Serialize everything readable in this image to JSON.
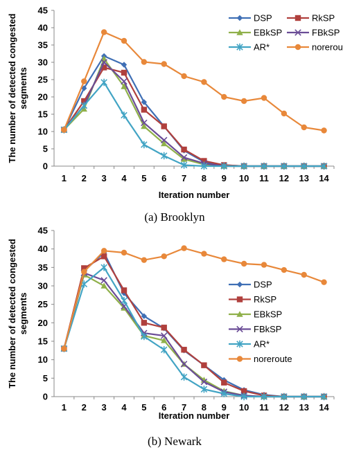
{
  "chart_data": [
    {
      "type": "line",
      "caption": "(a)  Brooklyn",
      "xlabel": "Iteration number",
      "ylabel": "The number of detected congested segments",
      "x": [
        1,
        2,
        3,
        4,
        5,
        6,
        7,
        8,
        9,
        10,
        11,
        12,
        13,
        14
      ],
      "ylim": [
        0,
        45
      ],
      "yticks": [
        0,
        5,
        10,
        15,
        20,
        25,
        30,
        35,
        40,
        45
      ],
      "legend": "top-right, 2 columns",
      "series": [
        {
          "name": "DSP",
          "color": "#3f6fb5",
          "marker": "diamond",
          "values": [
            10.5,
            22.5,
            31.8,
            29.3,
            18.5,
            11.5,
            4.5,
            1.2,
            0.3,
            0,
            0,
            0,
            0,
            0
          ]
        },
        {
          "name": "RkSP",
          "color": "#b0403d",
          "marker": "square",
          "values": [
            10.5,
            18.8,
            28.5,
            27.0,
            16.3,
            11.5,
            4.8,
            1.5,
            0.3,
            0,
            0,
            0,
            0,
            0
          ]
        },
        {
          "name": "EBkSP",
          "color": "#8fb04a",
          "marker": "triangle",
          "values": [
            10.5,
            16.5,
            31.0,
            23.0,
            11.5,
            6.5,
            2.0,
            0.5,
            0,
            0,
            0,
            0,
            0,
            0
          ]
        },
        {
          "name": "FBkSP",
          "color": "#6a4c96",
          "marker": "x",
          "values": [
            10.5,
            17.5,
            30.0,
            24.5,
            12.5,
            7.5,
            2.5,
            0.8,
            0,
            0,
            0,
            0,
            0,
            0
          ]
        },
        {
          "name": "AR*",
          "color": "#42a4c4",
          "marker": "star",
          "values": [
            10.5,
            17.5,
            24.2,
            14.7,
            6.2,
            3.0,
            0.3,
            0,
            0,
            0,
            0,
            0,
            0,
            0
          ]
        },
        {
          "name": "noreroute",
          "color": "#e8883a",
          "marker": "circle",
          "values": [
            10.5,
            24.5,
            38.7,
            36.2,
            30.1,
            29.5,
            26.0,
            24.3,
            20.0,
            18.8,
            19.7,
            15.2,
            11.2,
            10.3
          ]
        }
      ]
    },
    {
      "type": "line",
      "caption": "(b)  Newark",
      "xlabel": "Iteration number",
      "ylabel": "The number of detected congested segments",
      "x": [
        1,
        2,
        3,
        4,
        5,
        6,
        7,
        8,
        9,
        10,
        11,
        12,
        13,
        14
      ],
      "ylim": [
        0,
        45
      ],
      "yticks": [
        0,
        5,
        10,
        15,
        20,
        25,
        30,
        35,
        40,
        45
      ],
      "legend": "right, single column",
      "series": [
        {
          "name": "DSP",
          "color": "#3f6fb5",
          "marker": "diamond",
          "values": [
            13.0,
            34.0,
            39.0,
            28.0,
            21.8,
            18.5,
            12.5,
            8.5,
            4.5,
            1.8,
            0.5,
            0,
            0,
            0
          ]
        },
        {
          "name": "RkSP",
          "color": "#b0403d",
          "marker": "square",
          "values": [
            13.0,
            34.8,
            38.0,
            28.8,
            20.0,
            18.7,
            12.7,
            8.5,
            3.8,
            1.5,
            0.3,
            0,
            0,
            0
          ]
        },
        {
          "name": "EBkSP",
          "color": "#8fb04a",
          "marker": "triangle",
          "values": [
            13.0,
            33.0,
            30.0,
            24.0,
            16.5,
            15.2,
            8.8,
            4.5,
            1.5,
            0.3,
            0,
            0,
            0,
            0
          ]
        },
        {
          "name": "FBkSP",
          "color": "#6a4c96",
          "marker": "x",
          "values": [
            13.0,
            33.5,
            31.5,
            24.5,
            17.2,
            16.5,
            8.8,
            4.0,
            1.3,
            0.3,
            0,
            0,
            0,
            0
          ]
        },
        {
          "name": "AR*",
          "color": "#42a4c4",
          "marker": "star",
          "values": [
            13.0,
            30.5,
            35.0,
            26.0,
            16.3,
            12.7,
            5.3,
            2.0,
            0.8,
            0,
            0,
            0,
            0,
            0
          ]
        },
        {
          "name": "noreroute",
          "color": "#e8883a",
          "marker": "circle",
          "values": [
            13.0,
            33.8,
            39.5,
            39.0,
            37.0,
            38.0,
            40.2,
            38.7,
            37.2,
            36.0,
            35.7,
            34.3,
            33.0,
            31.0
          ]
        }
      ]
    }
  ]
}
